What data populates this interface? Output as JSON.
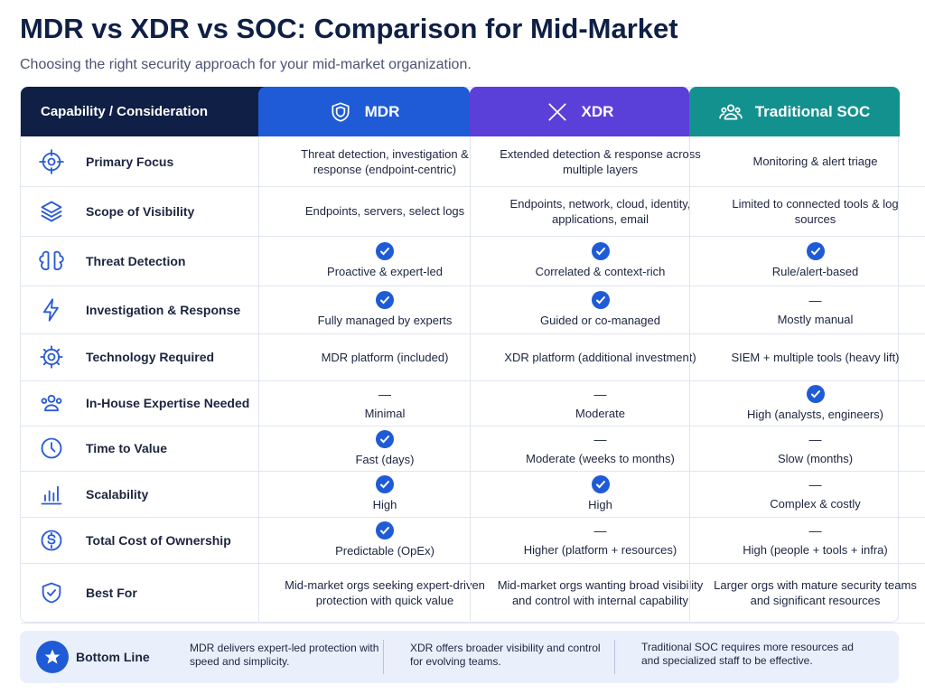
{
  "header": {
    "title": "MDR vs XDR vs SOC: Comparison for Mid-Market",
    "subtitle": "Choosing the right security approach for your mid-market organization."
  },
  "table": {
    "columns": [
      "Capability / Consideration",
      "MDR",
      "XDR",
      "Traditional SOC"
    ],
    "rows": [
      {
        "label": "Primary Focus",
        "cells": [
          {
            "text": "Threat detection, investigation & response (endpoint-centric)"
          },
          {
            "text": "Extended detection & response across multiple layers"
          },
          {
            "text": "Monitoring & alert triage"
          }
        ]
      },
      {
        "label": "Scope of Visibility",
        "cells": [
          {
            "text": "Endpoints, servers, select logs"
          },
          {
            "text": "Endpoints, network, cloud, identity, applications, email"
          },
          {
            "text": "Limited to connected tools & log sources"
          }
        ]
      },
      {
        "label": "Threat Detection",
        "cells": [
          {
            "check": true,
            "text": "Proactive & expert-led"
          },
          {
            "check": true,
            "text": "Correlated & context-rich"
          },
          {
            "check": true,
            "text": "Rule/alert-based"
          }
        ]
      },
      {
        "label": "Investigation & Response",
        "cells": [
          {
            "check": true,
            "text": "Fully managed by experts"
          },
          {
            "check": true,
            "text": "Guided or co-managed"
          },
          {
            "mark": "—",
            "text": "Mostly manual"
          }
        ]
      },
      {
        "label": "Technology Required",
        "cells": [
          {
            "text": "MDR platform (included)"
          },
          {
            "text": "XDR platform (additional investment)"
          },
          {
            "text": "SIEM + multiple tools (heavy lift)"
          }
        ]
      },
      {
        "label": "In-House Expertise Needed",
        "cells": [
          {
            "mark": "—",
            "text": "Minimal"
          },
          {
            "mark": "—",
            "text": "Moderate"
          },
          {
            "check": true,
            "text": "High (analysts, engineers)"
          }
        ]
      },
      {
        "label": "Time to Value",
        "cells": [
          {
            "check": true,
            "text": "Fast (days)"
          },
          {
            "mark": "—",
            "text": "Moderate (weeks to months)"
          },
          {
            "mark": "—",
            "text": "Slow (months)"
          }
        ]
      },
      {
        "label": "Scalability",
        "cells": [
          {
            "check": true,
            "text": "High"
          },
          {
            "check": true,
            "text": "High"
          },
          {
            "mark": "—",
            "text": "Complex & costly"
          }
        ]
      },
      {
        "label": "Total Cost of Ownership",
        "cells": [
          {
            "check": true,
            "text": "Predictable (OpEx)"
          },
          {
            "mark": "—",
            "text": "Higher (platform + resources)"
          },
          {
            "mark": "—",
            "text": "High (people + tools + infra)"
          }
        ]
      },
      {
        "label": "Best For",
        "cells": [
          {
            "text": "Mid-market orgs seeking expert-driven protection with quick value"
          },
          {
            "text": "Mid-market orgs wanting broad visibility and control with internal capability"
          },
          {
            "text": "Larger orgs with mature security teams and significant resources"
          }
        ]
      }
    ]
  },
  "bottom_line": {
    "label": "Bottom Line",
    "items": [
      "MDR delivers expert-led protection with speed and simplicity.",
      "XDR offers broader visibility and control for evolving teams.",
      "Traditional SOC requires more resources ad and specialized staff to be effective."
    ]
  }
}
